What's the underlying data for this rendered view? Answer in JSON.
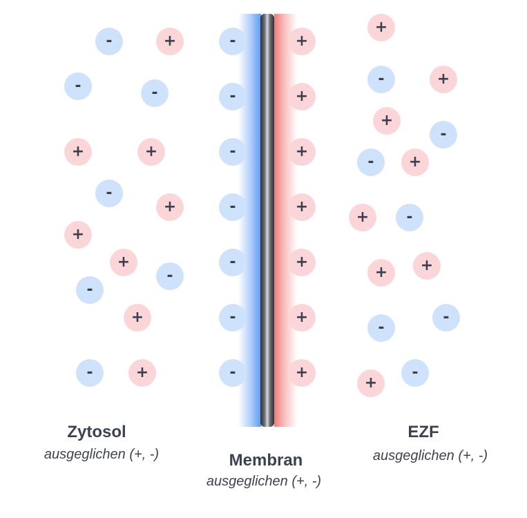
{
  "regions": {
    "cytosol": {
      "title": "Zytosol",
      "subtitle": "ausgeglichen (+, -)"
    },
    "membrane": {
      "title": "Membran",
      "subtitle": "ausgeglichen (+, -)"
    },
    "ecf": {
      "title": "EZF",
      "subtitle": "ausgeglichen (+, -)"
    }
  },
  "ion_symbols": {
    "negative": "-",
    "positive": "+"
  },
  "colors": {
    "negative_ion": "#cfe2fb",
    "positive_ion": "#fbd6d9",
    "membrane_inner_side": "#5a9cf2",
    "membrane_outer_side": "#f27a7a",
    "text": "#3c4350"
  }
}
